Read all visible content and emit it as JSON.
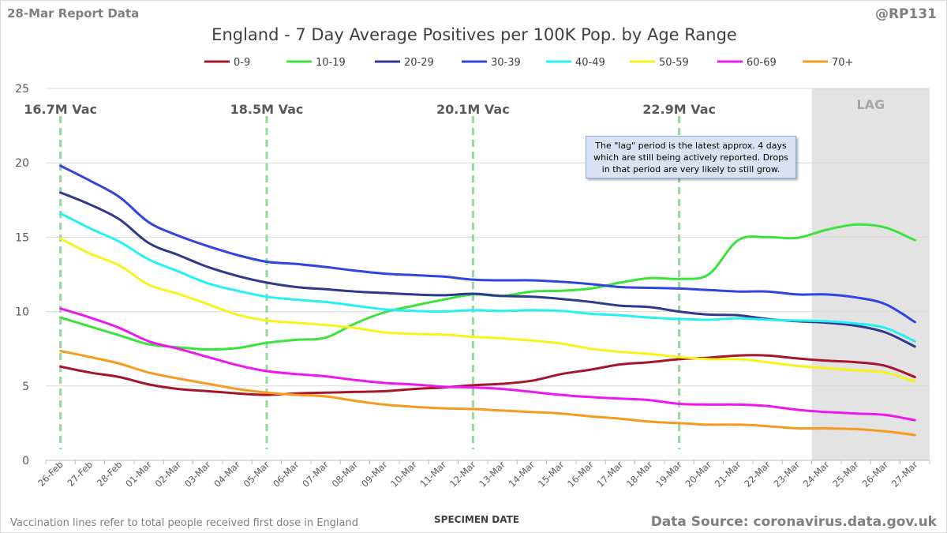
{
  "header": {
    "report_date": "28-Mar Report Data",
    "handle": "@RP131"
  },
  "footer": {
    "footnote": "Vaccination lines refer to total people received first dose in England",
    "source": "Data Source: coronavirus.data.gov.uk"
  },
  "note": {
    "lines": [
      "The \"lag\" period is the latest approx. 4 days",
      "which are still being actively reported. Drops",
      "in that period are very likely to still grow."
    ]
  },
  "colors": {
    "0-9": "#a6162b",
    "10-19": "#3be33b",
    "20-29": "#2e3a8c",
    "30-39": "#2f44e0",
    "40-49": "#27f0f5",
    "50-59": "#f5f51a",
    "60-69": "#ef17ef",
    "70+": "#f79a1d",
    "vac_line": "#92d8a0",
    "lag_band": "#e3e3e3",
    "gridline": "#d9d9d9"
  },
  "chart_data": {
    "type": "line",
    "title": "England - 7 Day Average Positives per 100K Pop. by Age Range",
    "xlabel": "SPECIMEN DATE",
    "ylabel": "",
    "ylim": [
      0,
      25
    ],
    "yticks": [
      0,
      5,
      10,
      15,
      20,
      25
    ],
    "grid": true,
    "legend_position": "top",
    "categories": [
      "26-Feb",
      "27-Feb",
      "28-Feb",
      "01-Mar",
      "02-Mar",
      "03-Mar",
      "04-Mar",
      "05-Mar",
      "06-Mar",
      "07-Mar",
      "08-Mar",
      "09-Mar",
      "10-Mar",
      "11-Mar",
      "12-Mar",
      "13-Mar",
      "14-Mar",
      "15-Mar",
      "16-Mar",
      "17-Mar",
      "18-Mar",
      "19-Mar",
      "20-Mar",
      "21-Mar",
      "22-Mar",
      "23-Mar",
      "24-Mar",
      "25-Mar",
      "26-Mar",
      "27-Mar"
    ],
    "series": [
      {
        "name": "0-9",
        "values": [
          6.3,
          5.9,
          5.6,
          5.1,
          4.8,
          4.65,
          4.5,
          4.4,
          4.5,
          4.55,
          4.6,
          4.65,
          4.8,
          4.9,
          5.05,
          5.15,
          5.35,
          5.8,
          6.1,
          6.45,
          6.6,
          6.8,
          6.9,
          7.05,
          7.05,
          6.85,
          6.7,
          6.6,
          6.35,
          5.6
        ]
      },
      {
        "name": "10-19",
        "values": [
          9.6,
          9.0,
          8.4,
          7.8,
          7.6,
          7.45,
          7.55,
          7.9,
          8.1,
          8.25,
          9.2,
          9.95,
          10.4,
          10.8,
          11.15,
          11.05,
          11.35,
          11.4,
          11.55,
          11.95,
          12.25,
          12.2,
          12.5,
          14.8,
          15.0,
          14.95,
          15.5,
          15.85,
          15.65,
          14.8
        ]
      },
      {
        "name": "20-29",
        "values": [
          18.0,
          17.2,
          16.2,
          14.6,
          13.8,
          13.0,
          12.4,
          11.95,
          11.65,
          11.5,
          11.35,
          11.25,
          11.15,
          11.1,
          11.2,
          11.05,
          11.0,
          10.85,
          10.65,
          10.4,
          10.3,
          10.0,
          9.8,
          9.75,
          9.5,
          9.35,
          9.25,
          9.05,
          8.6,
          7.65
        ]
      },
      {
        "name": "30-39",
        "values": [
          19.8,
          18.8,
          17.7,
          16.0,
          15.1,
          14.4,
          13.8,
          13.35,
          13.2,
          13.0,
          12.75,
          12.55,
          12.45,
          12.35,
          12.15,
          12.1,
          12.1,
          12.0,
          11.85,
          11.65,
          11.6,
          11.55,
          11.45,
          11.35,
          11.35,
          11.15,
          11.15,
          10.95,
          10.5,
          9.3
        ]
      },
      {
        "name": "40-49",
        "values": [
          16.6,
          15.6,
          14.7,
          13.5,
          12.7,
          11.9,
          11.4,
          11.0,
          10.8,
          10.65,
          10.4,
          10.15,
          10.05,
          10.0,
          10.1,
          10.05,
          10.1,
          10.05,
          9.85,
          9.75,
          9.6,
          9.5,
          9.45,
          9.55,
          9.45,
          9.4,
          9.35,
          9.2,
          8.9,
          8.0
        ]
      },
      {
        "name": "50-59",
        "values": [
          14.9,
          13.9,
          13.1,
          11.8,
          11.2,
          10.5,
          9.8,
          9.4,
          9.25,
          9.1,
          8.9,
          8.6,
          8.5,
          8.45,
          8.3,
          8.2,
          8.05,
          7.85,
          7.5,
          7.3,
          7.15,
          6.95,
          6.8,
          6.8,
          6.6,
          6.35,
          6.2,
          6.05,
          5.9,
          5.3
        ]
      },
      {
        "name": "60-69",
        "values": [
          10.2,
          9.6,
          8.9,
          8.0,
          7.5,
          6.95,
          6.4,
          6.0,
          5.8,
          5.65,
          5.4,
          5.2,
          5.1,
          4.95,
          4.9,
          4.8,
          4.6,
          4.4,
          4.25,
          4.15,
          4.05,
          3.8,
          3.75,
          3.75,
          3.65,
          3.4,
          3.25,
          3.15,
          3.05,
          2.7
        ]
      },
      {
        "name": "70+",
        "values": [
          7.35,
          6.95,
          6.5,
          5.9,
          5.5,
          5.15,
          4.8,
          4.55,
          4.4,
          4.3,
          4.0,
          3.75,
          3.6,
          3.5,
          3.45,
          3.35,
          3.25,
          3.15,
          2.95,
          2.8,
          2.6,
          2.5,
          2.4,
          2.4,
          2.3,
          2.15,
          2.15,
          2.1,
          1.95,
          1.7
        ]
      }
    ],
    "vaccination_lines": [
      {
        "date": "26-Feb",
        "label": "16.7M Vac"
      },
      {
        "date": "05-Mar",
        "label": "18.5M Vac"
      },
      {
        "date": "12-Mar",
        "label": "20.1M Vac"
      },
      {
        "date": "19-Mar",
        "label": "22.9M Vac"
      }
    ],
    "lag_region": {
      "start": "24-Mar",
      "end": "27-Mar",
      "label": "LAG"
    }
  }
}
